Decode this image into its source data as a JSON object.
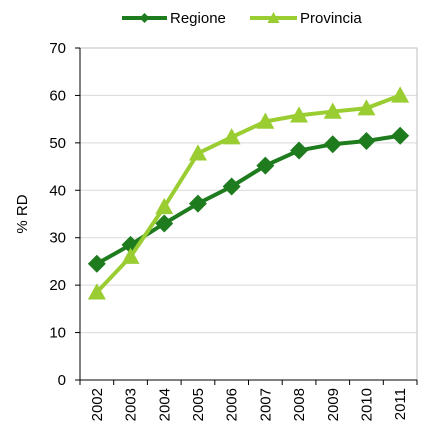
{
  "chart_data": {
    "type": "line",
    "categories": [
      "2002",
      "2003",
      "2004",
      "2005",
      "2006",
      "2007",
      "2008",
      "2009",
      "2010",
      "2011"
    ],
    "series": [
      {
        "name": "Regione",
        "color": "#1e7b1e",
        "marker": "diamond",
        "values": [
          24.5,
          28.5,
          33,
          37.2,
          40.8,
          45.2,
          48.4,
          49.7,
          50.4,
          51.5
        ]
      },
      {
        "name": "Provincia",
        "color": "#9acd32",
        "marker": "triangle",
        "values": [
          18.5,
          26,
          36.5,
          47.8,
          51.2,
          54.5,
          55.8,
          56.6,
          57.3,
          60
        ]
      }
    ],
    "ylabel": "% RD",
    "xlabel": "",
    "ylim": [
      0,
      70
    ],
    "yticks": [
      0,
      10,
      20,
      30,
      40,
      50,
      60,
      70
    ],
    "grid": "horizontal",
    "legend_position": "top-center"
  }
}
